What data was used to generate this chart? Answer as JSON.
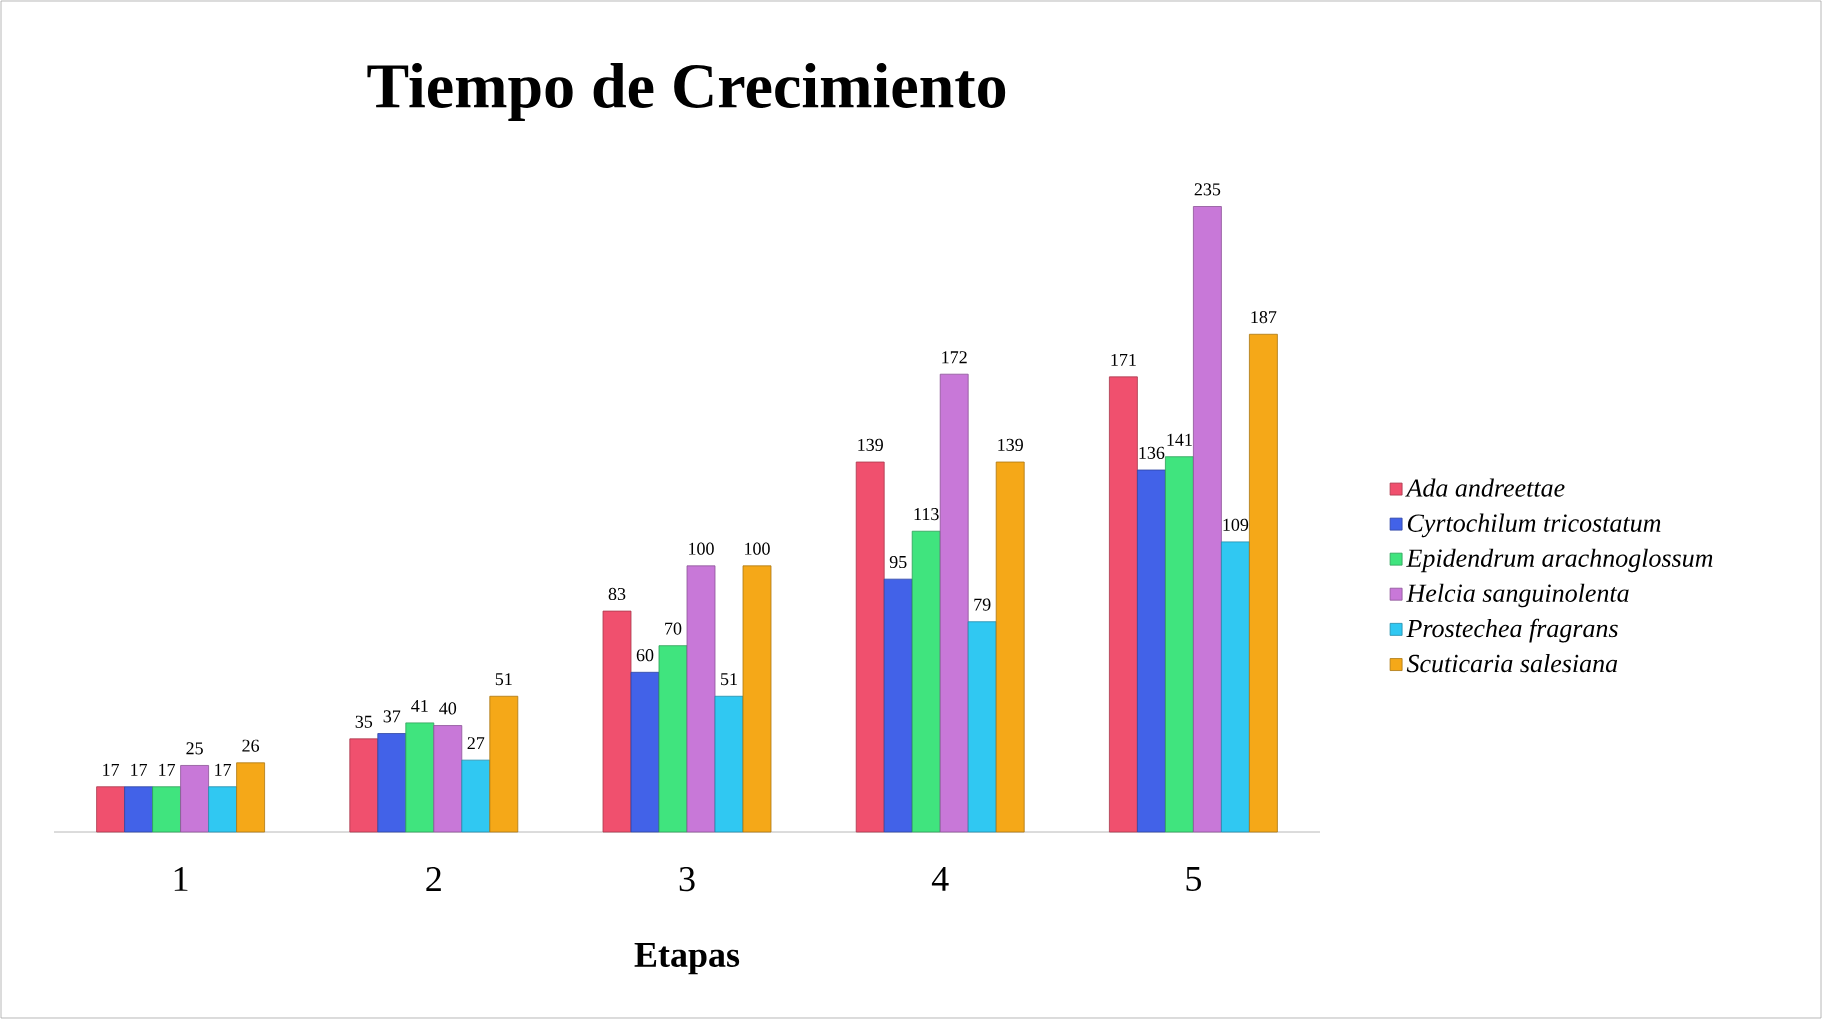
{
  "chart_data": {
    "type": "bar",
    "title": "Tiempo de Crecimiento",
    "xlabel": "Etapas",
    "categories": [
      "1",
      "2",
      "3",
      "4",
      "5"
    ],
    "series": [
      {
        "name": "Ada andreettae",
        "color": "#f0506e",
        "values": [
          17,
          35,
          83,
          139,
          171
        ]
      },
      {
        "name": "Cyrtochilum tricostatum",
        "color": "#4262e8",
        "values": [
          17,
          37,
          60,
          95,
          136
        ]
      },
      {
        "name": "Epidendrum arachnoglossum",
        "color": "#40e47e",
        "values": [
          17,
          41,
          70,
          113,
          141
        ]
      },
      {
        "name": "Helcia sanguinolenta",
        "color": "#c878d8",
        "values": [
          25,
          40,
          100,
          172,
          235
        ]
      },
      {
        "name": "Prostechea fragrans",
        "color": "#30c8f2",
        "values": [
          17,
          27,
          51,
          79,
          109
        ]
      },
      {
        "name": "Scuticaria salesiana",
        "color": "#f5a818",
        "values": [
          26,
          51,
          100,
          139,
          187
        ]
      }
    ],
    "data_labels": true,
    "legend": "right",
    "tick_labels": "x"
  }
}
